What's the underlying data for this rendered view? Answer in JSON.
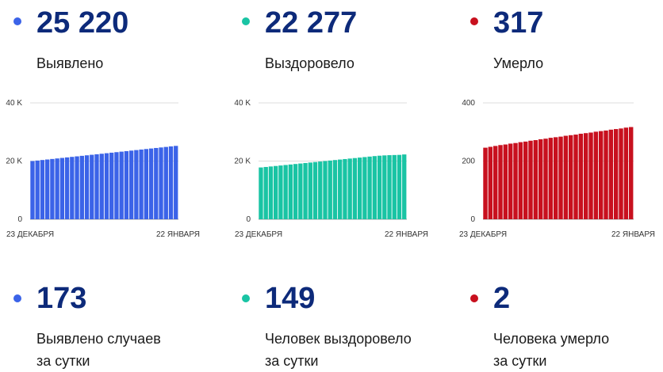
{
  "colors": {
    "accent_text": "#0d2a7a",
    "grid": "#dddddd"
  },
  "sections": [
    {
      "dot_color": "#3b63e8",
      "total": "25 220",
      "label": "Выявлено",
      "daily": "173",
      "daily_label_1": "Выявлено случаев",
      "daily_label_2": "за сутки"
    },
    {
      "dot_color": "#19c4a4",
      "total": "22 277",
      "label": "Выздоровело",
      "daily": "149",
      "daily_label_1": "Человек выздоровело",
      "daily_label_2": "за сутки"
    },
    {
      "dot_color": "#c8101e",
      "total": "317",
      "label": "Умерло",
      "daily": "2",
      "daily_label_1": "Человека умерло",
      "daily_label_2": "за сутки"
    }
  ],
  "chart_data": [
    {
      "type": "bar",
      "color": "#3b63e8",
      "ylim": [
        0,
        40000
      ],
      "yticks": [
        0,
        20000,
        40000
      ],
      "ytick_labels": [
        "0",
        "20 K",
        "40 K"
      ],
      "x_start_label": "23 ДЕКАБРЯ",
      "x_end_label": "22 ЯНВАРЯ",
      "grid": true,
      "values": [
        20000,
        20180,
        20360,
        20540,
        20720,
        20900,
        21080,
        21260,
        21440,
        21620,
        21800,
        21980,
        22160,
        22340,
        22520,
        22700,
        22880,
        23060,
        23240,
        23420,
        23600,
        23780,
        23960,
        24140,
        24320,
        24500,
        24680,
        24860,
        25047,
        25220
      ]
    },
    {
      "type": "bar",
      "color": "#19c4a4",
      "ylim": [
        0,
        40000
      ],
      "yticks": [
        0,
        20000,
        40000
      ],
      "ytick_labels": [
        "0",
        "20 K",
        "40 K"
      ],
      "x_start_label": "23 ДЕКАБРЯ",
      "x_end_label": "22 ЯНВАРЯ",
      "grid": true,
      "values": [
        17800,
        17970,
        18140,
        18310,
        18480,
        18650,
        18820,
        18990,
        19160,
        19330,
        19500,
        19670,
        19840,
        20010,
        20180,
        20350,
        20520,
        20690,
        20860,
        21030,
        21200,
        21370,
        21540,
        21710,
        21850,
        21950,
        22030,
        22080,
        22128,
        22277
      ]
    },
    {
      "type": "bar",
      "color": "#c8101e",
      "ylim": [
        0,
        400
      ],
      "yticks": [
        0,
        200,
        400
      ],
      "ytick_labels": [
        "0",
        "200",
        "400"
      ],
      "x_start_label": "23 ДЕКАБРЯ",
      "x_end_label": "22 ЯНВАРЯ",
      "grid": true,
      "values": [
        246,
        249,
        252,
        255,
        257,
        260,
        262,
        265,
        267,
        270,
        272,
        275,
        277,
        280,
        282,
        284,
        287,
        289,
        291,
        294,
        296,
        298,
        301,
        303,
        305,
        308,
        310,
        312,
        315,
        317
      ]
    }
  ]
}
